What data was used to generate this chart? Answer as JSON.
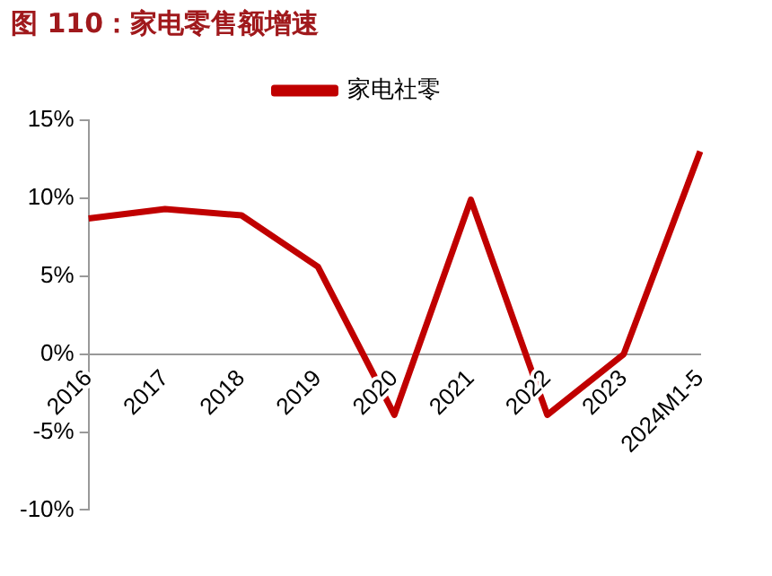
{
  "chart_data": {
    "type": "line",
    "title": "图 110：家电零售额增速",
    "categories": [
      "2016",
      "2017",
      "2018",
      "2019",
      "2020",
      "2021",
      "2022",
      "2023",
      "2024M1-5"
    ],
    "series": [
      {
        "name": "家电社零",
        "color": "#c00000",
        "values": [
          8.7,
          9.3,
          8.9,
          5.6,
          -3.9,
          9.9,
          -3.9,
          0,
          13.0
        ]
      }
    ],
    "ylim": [
      -10,
      15
    ],
    "yticks": [
      {
        "value": -10,
        "label": "-10%"
      },
      {
        "value": -5,
        "label": "-5%"
      },
      {
        "value": 0,
        "label": "0%"
      },
      {
        "value": 5,
        "label": "5%"
      },
      {
        "value": 10,
        "label": "10%"
      },
      {
        "value": 15,
        "label": "15%"
      }
    ],
    "legend": "top",
    "grid": false,
    "marker": "none",
    "line_style": "solid"
  }
}
